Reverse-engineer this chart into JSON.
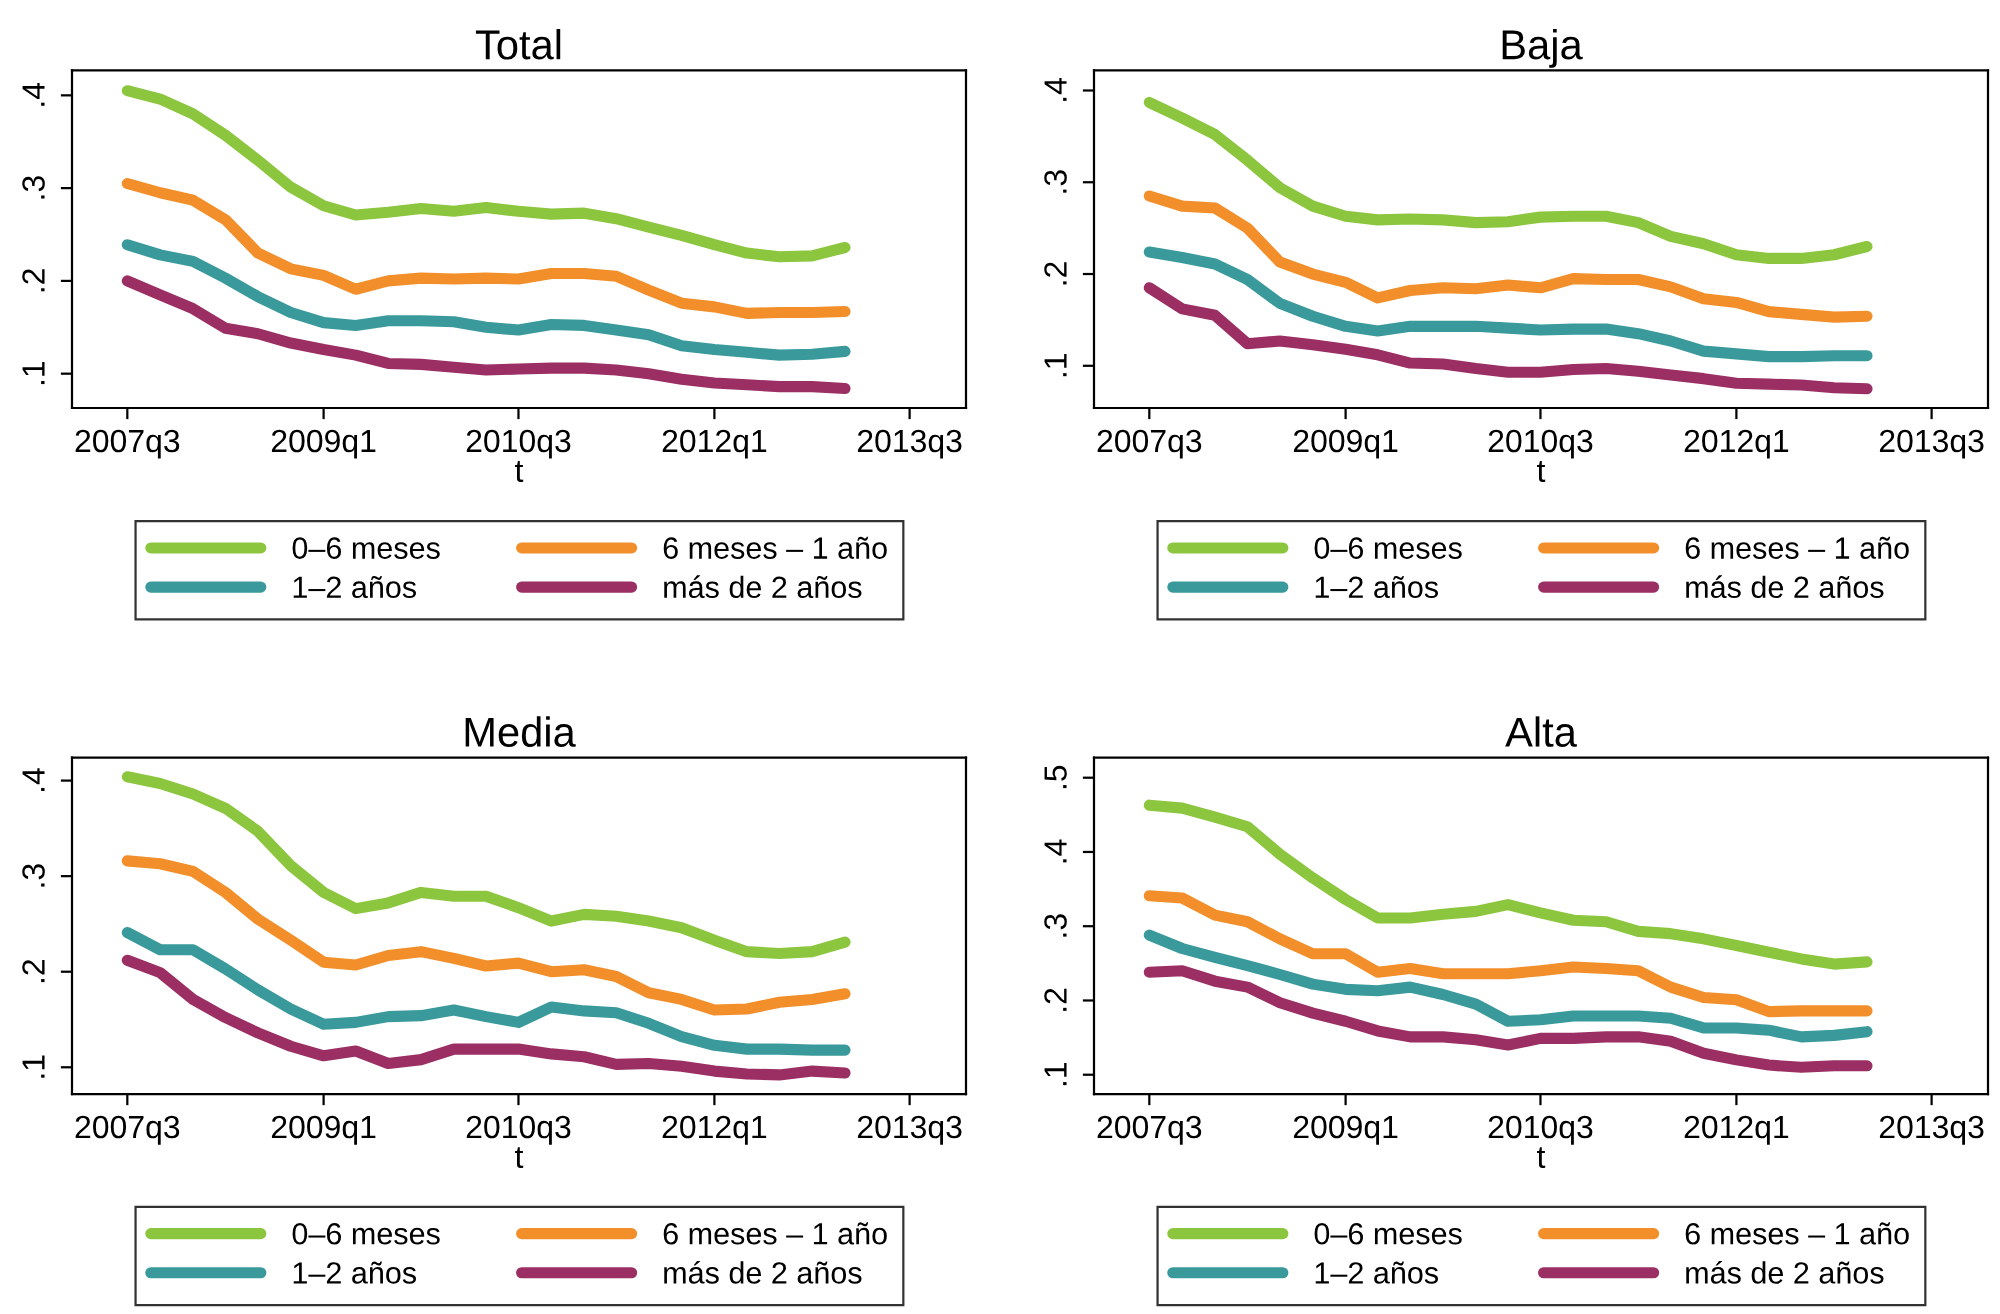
{
  "chart_data": [
    {
      "type": "line",
      "title": "Total",
      "xlabel": "t",
      "legend": "bottom",
      "x": [
        "2007-07",
        "2007-10",
        "2008-01",
        "2008-04",
        "2008-07",
        "2008-10",
        "2009-01",
        "2009-04",
        "2009-07",
        "2009-10",
        "2010-01",
        "2010-04",
        "2010-07",
        "2010-10",
        "2011-01",
        "2011-04",
        "2011-07",
        "2011-10",
        "2012-01",
        "2012-04",
        "2012-07",
        "2012-10",
        "2013-01"
      ],
      "xlim": [
        "2007-02-10",
        "2013-12-20"
      ],
      "xticks": [
        {
          "value": "2007-07",
          "label": "2007q3"
        },
        {
          "value": "2009-01",
          "label": "2009q1"
        },
        {
          "value": "2010-07",
          "label": "2010q3"
        },
        {
          "value": "2012-01",
          "label": "2012q1"
        },
        {
          "value": "2013-07",
          "label": "2013q3"
        }
      ],
      "ylim": [
        0.063,
        0.427
      ],
      "yticks": [
        {
          "value": 0.1,
          "label": ".1"
        },
        {
          "value": 0.2,
          "label": ".2"
        },
        {
          "value": 0.3,
          "label": ".3"
        },
        {
          "value": 0.4,
          "label": ".4"
        }
      ],
      "series": [
        {
          "name": "0–6 meses",
          "color": "#8cc63f",
          "values": [
            0.405,
            0.396,
            0.38,
            0.357,
            0.33,
            0.301,
            0.281,
            0.271,
            0.274,
            0.278,
            0.275,
            0.279,
            0.275,
            0.272,
            0.273,
            0.267,
            0.258,
            0.249,
            0.239,
            0.23,
            0.226,
            0.227,
            0.236
          ]
        },
        {
          "name": "6 meses – 1 año",
          "color": "#f28f2a",
          "values": [
            0.305,
            0.295,
            0.287,
            0.266,
            0.23,
            0.213,
            0.206,
            0.191,
            0.2,
            0.203,
            0.202,
            0.203,
            0.202,
            0.208,
            0.208,
            0.205,
            0.19,
            0.176,
            0.172,
            0.165,
            0.166,
            0.166,
            0.167
          ]
        },
        {
          "name": "1–2 años",
          "color": "#3a9a9b",
          "values": [
            0.239,
            0.228,
            0.221,
            0.203,
            0.183,
            0.166,
            0.155,
            0.152,
            0.157,
            0.157,
            0.156,
            0.15,
            0.147,
            0.153,
            0.152,
            0.147,
            0.142,
            0.13,
            0.126,
            0.123,
            0.12,
            0.121,
            0.124
          ]
        },
        {
          "name": "más de 2 años",
          "color": "#9b2f63",
          "values": [
            0.2,
            0.185,
            0.17,
            0.149,
            0.143,
            0.133,
            0.126,
            0.12,
            0.111,
            0.11,
            0.107,
            0.104,
            0.105,
            0.106,
            0.106,
            0.104,
            0.1,
            0.094,
            0.09,
            0.088,
            0.086,
            0.086,
            0.084
          ]
        }
      ]
    },
    {
      "type": "line",
      "title": "Baja",
      "xlabel": "t",
      "legend": "bottom",
      "x": [
        "2007-07",
        "2007-10",
        "2008-01",
        "2008-04",
        "2008-07",
        "2008-10",
        "2009-01",
        "2009-04",
        "2009-07",
        "2009-10",
        "2010-01",
        "2010-04",
        "2010-07",
        "2010-10",
        "2011-01",
        "2011-04",
        "2011-07",
        "2011-10",
        "2012-01",
        "2012-04",
        "2012-07",
        "2012-10",
        "2013-01"
      ],
      "xlim": [
        "2007-02-10",
        "2013-12-20"
      ],
      "xticks": [
        {
          "value": "2007-07",
          "label": "2007q3"
        },
        {
          "value": "2009-01",
          "label": "2009q1"
        },
        {
          "value": "2010-07",
          "label": "2010q3"
        },
        {
          "value": "2012-01",
          "label": "2012q1"
        },
        {
          "value": "2013-07",
          "label": "2013q3"
        }
      ],
      "ylim": [
        0.054,
        0.422
      ],
      "yticks": [
        {
          "value": 0.1,
          "label": ".1"
        },
        {
          "value": 0.2,
          "label": ".2"
        },
        {
          "value": 0.3,
          "label": ".3"
        },
        {
          "value": 0.4,
          "label": ".4"
        }
      ],
      "series": [
        {
          "name": "0–6 meses",
          "color": "#8cc63f",
          "values": [
            0.387,
            0.37,
            0.352,
            0.324,
            0.294,
            0.274,
            0.263,
            0.259,
            0.26,
            0.259,
            0.256,
            0.257,
            0.262,
            0.263,
            0.263,
            0.256,
            0.241,
            0.233,
            0.221,
            0.217,
            0.217,
            0.221,
            0.23
          ]
        },
        {
          "name": "6 meses – 1 año",
          "color": "#f28f2a",
          "values": [
            0.285,
            0.274,
            0.272,
            0.25,
            0.213,
            0.2,
            0.191,
            0.174,
            0.182,
            0.185,
            0.184,
            0.188,
            0.185,
            0.195,
            0.194,
            0.194,
            0.186,
            0.173,
            0.169,
            0.159,
            0.156,
            0.153,
            0.154
          ]
        },
        {
          "name": "1–2 años",
          "color": "#3a9a9b",
          "values": [
            0.224,
            0.218,
            0.211,
            0.194,
            0.168,
            0.154,
            0.143,
            0.138,
            0.143,
            0.143,
            0.143,
            0.141,
            0.139,
            0.14,
            0.14,
            0.135,
            0.127,
            0.116,
            0.113,
            0.11,
            0.11,
            0.111,
            0.111
          ]
        },
        {
          "name": "más de 2 años",
          "color": "#9b2f63",
          "values": [
            0.185,
            0.162,
            0.155,
            0.124,
            0.127,
            0.123,
            0.118,
            0.112,
            0.103,
            0.102,
            0.097,
            0.093,
            0.093,
            0.096,
            0.097,
            0.094,
            0.09,
            0.086,
            0.081,
            0.08,
            0.079,
            0.076,
            0.075
          ]
        }
      ]
    },
    {
      "type": "line",
      "title": "Media",
      "xlabel": "t",
      "legend": "bottom",
      "x": [
        "2007-07",
        "2007-10",
        "2008-01",
        "2008-04",
        "2008-07",
        "2008-10",
        "2009-01",
        "2009-04",
        "2009-07",
        "2009-10",
        "2010-01",
        "2010-04",
        "2010-07",
        "2010-10",
        "2011-01",
        "2011-04",
        "2011-07",
        "2011-10",
        "2012-01",
        "2012-04",
        "2012-07",
        "2012-10",
        "2013-01"
      ],
      "xlim": [
        "2007-02-10",
        "2013-12-20"
      ],
      "xticks": [
        {
          "value": "2007-07",
          "label": "2007q3"
        },
        {
          "value": "2009-01",
          "label": "2009q1"
        },
        {
          "value": "2010-07",
          "label": "2010q3"
        },
        {
          "value": "2012-01",
          "label": "2012q1"
        },
        {
          "value": "2013-07",
          "label": "2013q3"
        }
      ],
      "ylim": [
        0.072,
        0.424
      ],
      "yticks": [
        {
          "value": 0.1,
          "label": ".1"
        },
        {
          "value": 0.2,
          "label": ".2"
        },
        {
          "value": 0.3,
          "label": ".3"
        },
        {
          "value": 0.4,
          "label": ".4"
        }
      ],
      "series": [
        {
          "name": "0–6 meses",
          "color": "#8cc63f",
          "values": [
            0.404,
            0.397,
            0.386,
            0.371,
            0.347,
            0.311,
            0.283,
            0.266,
            0.272,
            0.283,
            0.279,
            0.279,
            0.267,
            0.253,
            0.26,
            0.258,
            0.253,
            0.246,
            0.233,
            0.221,
            0.219,
            0.221,
            0.231
          ]
        },
        {
          "name": "6 meses – 1 año",
          "color": "#f28f2a",
          "values": [
            0.316,
            0.313,
            0.305,
            0.283,
            0.255,
            0.233,
            0.21,
            0.207,
            0.217,
            0.221,
            0.214,
            0.206,
            0.209,
            0.2,
            0.202,
            0.195,
            0.178,
            0.171,
            0.16,
            0.161,
            0.168,
            0.171,
            0.177
          ]
        },
        {
          "name": "1–2 años",
          "color": "#3a9a9b",
          "values": [
            0.241,
            0.223,
            0.223,
            0.203,
            0.181,
            0.161,
            0.145,
            0.147,
            0.153,
            0.154,
            0.16,
            0.153,
            0.147,
            0.163,
            0.159,
            0.157,
            0.146,
            0.132,
            0.123,
            0.119,
            0.119,
            0.118,
            0.118
          ]
        },
        {
          "name": "más de 2 años",
          "color": "#9b2f63",
          "values": [
            0.212,
            0.199,
            0.171,
            0.152,
            0.136,
            0.122,
            0.112,
            0.117,
            0.104,
            0.108,
            0.119,
            0.119,
            0.119,
            0.114,
            0.111,
            0.103,
            0.104,
            0.101,
            0.096,
            0.093,
            0.092,
            0.096,
            0.094
          ]
        }
      ]
    },
    {
      "type": "line",
      "title": "Alta",
      "xlabel": "t",
      "legend": "bottom",
      "x": [
        "2007-07",
        "2007-10",
        "2008-01",
        "2008-04",
        "2008-07",
        "2008-10",
        "2009-01",
        "2009-04",
        "2009-07",
        "2009-10",
        "2010-01",
        "2010-04",
        "2010-07",
        "2010-10",
        "2011-01",
        "2011-04",
        "2011-07",
        "2011-10",
        "2012-01",
        "2012-04",
        "2012-07",
        "2012-10",
        "2013-01"
      ],
      "xlim": [
        "2007-02-10",
        "2013-12-20"
      ],
      "xticks": [
        {
          "value": "2007-07",
          "label": "2007q3"
        },
        {
          "value": "2009-01",
          "label": "2009q1"
        },
        {
          "value": "2010-07",
          "label": "2010q3"
        },
        {
          "value": "2012-01",
          "label": "2012q1"
        },
        {
          "value": "2013-07",
          "label": "2013q3"
        }
      ],
      "ylim": [
        0.074,
        0.527
      ],
      "yticks": [
        {
          "value": 0.1,
          "label": ".1"
        },
        {
          "value": 0.2,
          "label": ".2"
        },
        {
          "value": 0.3,
          "label": ".3"
        },
        {
          "value": 0.4,
          "label": ".4"
        },
        {
          "value": 0.5,
          "label": ".5"
        }
      ],
      "series": [
        {
          "name": "0–6 meses",
          "color": "#8cc63f",
          "values": [
            0.463,
            0.459,
            0.447,
            0.434,
            0.397,
            0.365,
            0.336,
            0.311,
            0.311,
            0.316,
            0.32,
            0.329,
            0.318,
            0.308,
            0.306,
            0.293,
            0.29,
            0.283,
            0.274,
            0.265,
            0.256,
            0.249,
            0.252
          ]
        },
        {
          "name": "6 meses – 1 año",
          "color": "#f28f2a",
          "values": [
            0.341,
            0.338,
            0.315,
            0.306,
            0.283,
            0.263,
            0.263,
            0.238,
            0.243,
            0.236,
            0.236,
            0.236,
            0.24,
            0.245,
            0.243,
            0.24,
            0.218,
            0.204,
            0.201,
            0.185,
            0.186,
            0.186,
            0.186
          ]
        },
        {
          "name": "1–2 años",
          "color": "#3a9a9b",
          "values": [
            0.288,
            0.27,
            0.258,
            0.247,
            0.235,
            0.222,
            0.215,
            0.213,
            0.218,
            0.208,
            0.195,
            0.172,
            0.174,
            0.179,
            0.179,
            0.179,
            0.176,
            0.163,
            0.163,
            0.16,
            0.151,
            0.153,
            0.158
          ]
        },
        {
          "name": "más de 2 años",
          "color": "#9b2f63",
          "values": [
            0.238,
            0.24,
            0.226,
            0.218,
            0.197,
            0.183,
            0.172,
            0.159,
            0.151,
            0.151,
            0.147,
            0.14,
            0.149,
            0.149,
            0.151,
            0.151,
            0.145,
            0.129,
            0.12,
            0.113,
            0.11,
            0.112,
            0.112
          ]
        }
      ]
    }
  ]
}
